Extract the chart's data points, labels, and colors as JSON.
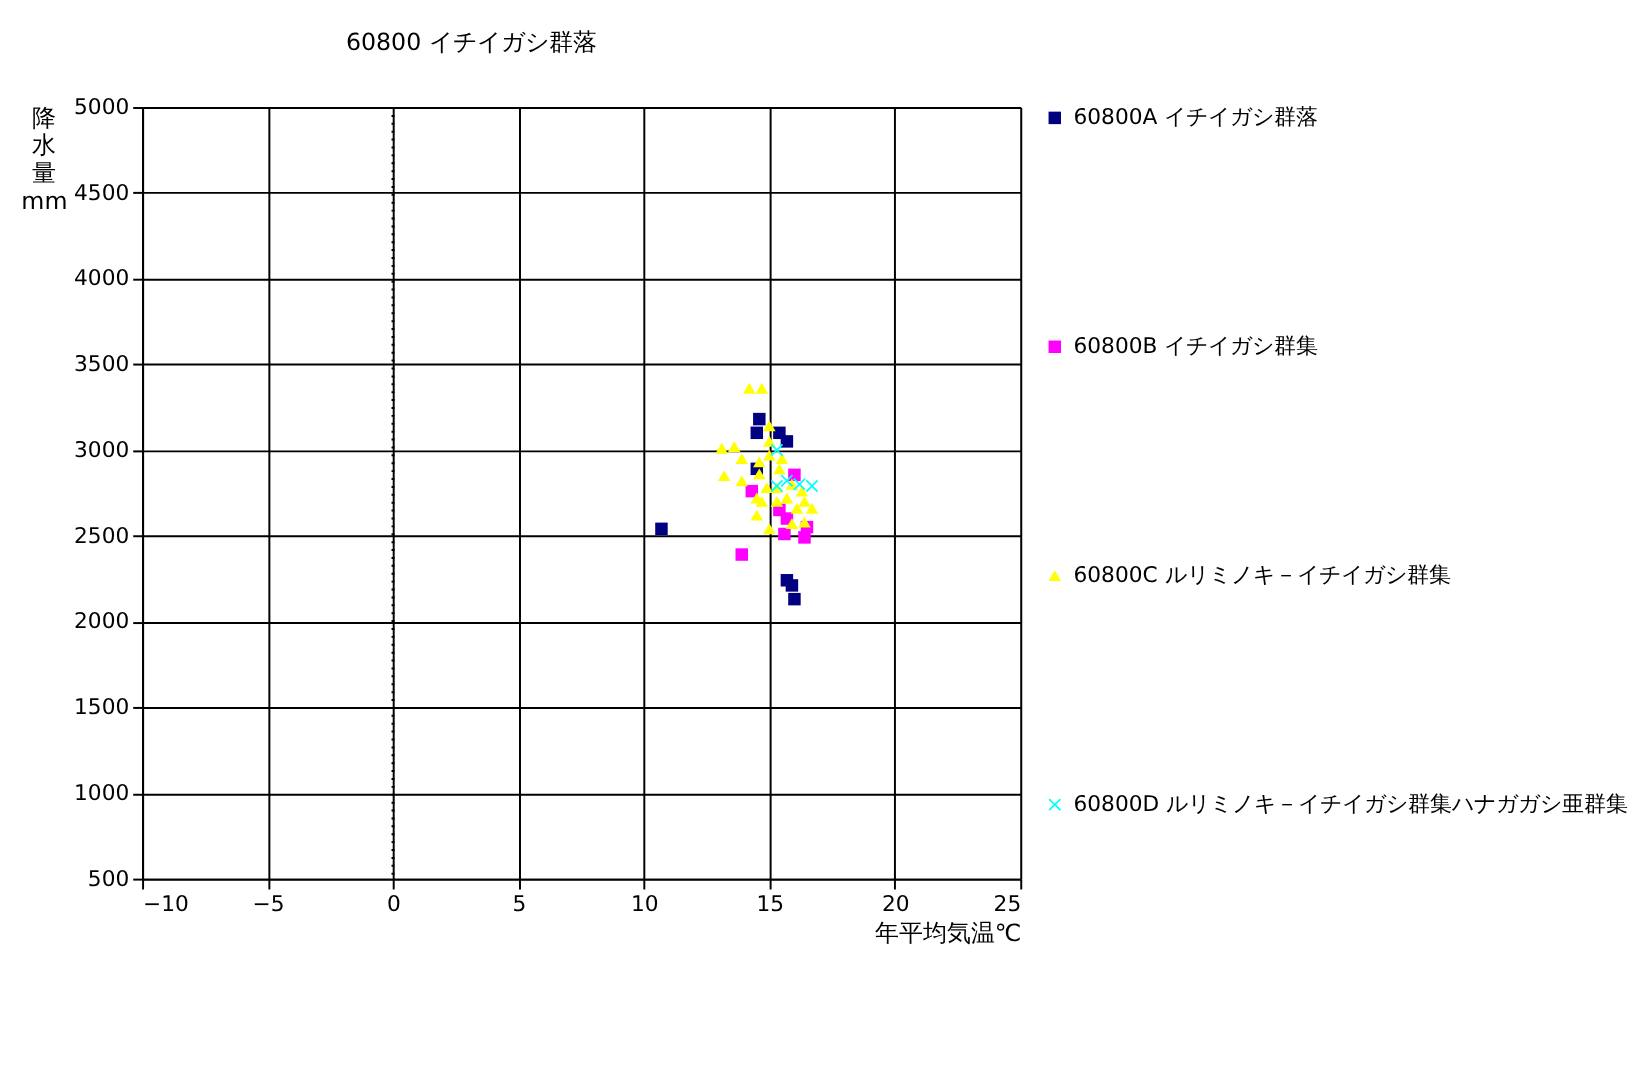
{
  "chart_data": {
    "type": "scatter",
    "title": "60800 イチイガシ群落",
    "xlabel": "年平均気温℃",
    "ylabel": "降水量 mm",
    "xlim": [
      -10,
      25
    ],
    "xticks": [
      -10,
      -5,
      0,
      5,
      10,
      15,
      20,
      25
    ],
    "ylim": [
      500,
      5000
    ],
    "yticks": [
      500,
      1000,
      1500,
      2000,
      2500,
      3000,
      3500,
      4000,
      4500,
      5000
    ],
    "grid": true,
    "legend": "right",
    "ref_lines": [
      {
        "axis": "x",
        "value": 0,
        "line_style": "dotted",
        "color": "#000000"
      }
    ],
    "series": [
      {
        "name": "60800A イチイガシ群落",
        "color": "#000080",
        "marker": "square",
        "x": [
          14.6,
          14.5,
          15.4,
          15.7,
          10.7,
          15.7,
          15.9,
          16.0,
          14.5
        ],
        "values": [
          3180,
          3100,
          3100,
          3050,
          2540,
          2240,
          2210,
          2130,
          2890
        ]
      },
      {
        "name": "60800B イチイガシ群集",
        "color": "#ff00ff",
        "marker": "square",
        "x": [
          13.9,
          14.3,
          15.4,
          15.6,
          16.4,
          16.5,
          16.0,
          15.7
        ],
        "values": [
          2390,
          2760,
          2650,
          2510,
          2490,
          2550,
          2855,
          2600
        ]
      },
      {
        "name": "60800C ルリミノキ－イチイガシ群集",
        "color": "#ffff00",
        "marker": "triangle",
        "x": [
          14.2,
          14.7,
          15.0,
          13.1,
          13.6,
          13.9,
          13.2,
          13.9,
          14.6,
          15.0,
          14.6,
          14.9,
          14.5,
          14.5,
          15.0,
          15.4,
          15.9,
          16.3,
          16.4,
          16.7,
          16.1,
          15.9,
          16.4,
          15.7,
          15.3,
          15.5,
          15.0,
          15.3,
          14.7
        ],
        "values": [
          3360,
          3360,
          3140,
          3010,
          3020,
          2950,
          2850,
          2820,
          2930,
          3050,
          2860,
          2780,
          2720,
          2620,
          2540,
          2890,
          2800,
          2760,
          2700,
          2660,
          2660,
          2570,
          2580,
          2720,
          2700,
          2950,
          2970,
          2780,
          2700
        ]
      },
      {
        "name": "60800D ルリミノキ－イチイガシ群集ハナガガシ亜群集",
        "color": "#00ffff",
        "marker": "cross",
        "x": [
          15.3,
          15.7,
          15.3,
          16.7,
          16.2
        ],
        "values": [
          3000,
          2820,
          2790,
          2790,
          2800
        ]
      }
    ]
  }
}
